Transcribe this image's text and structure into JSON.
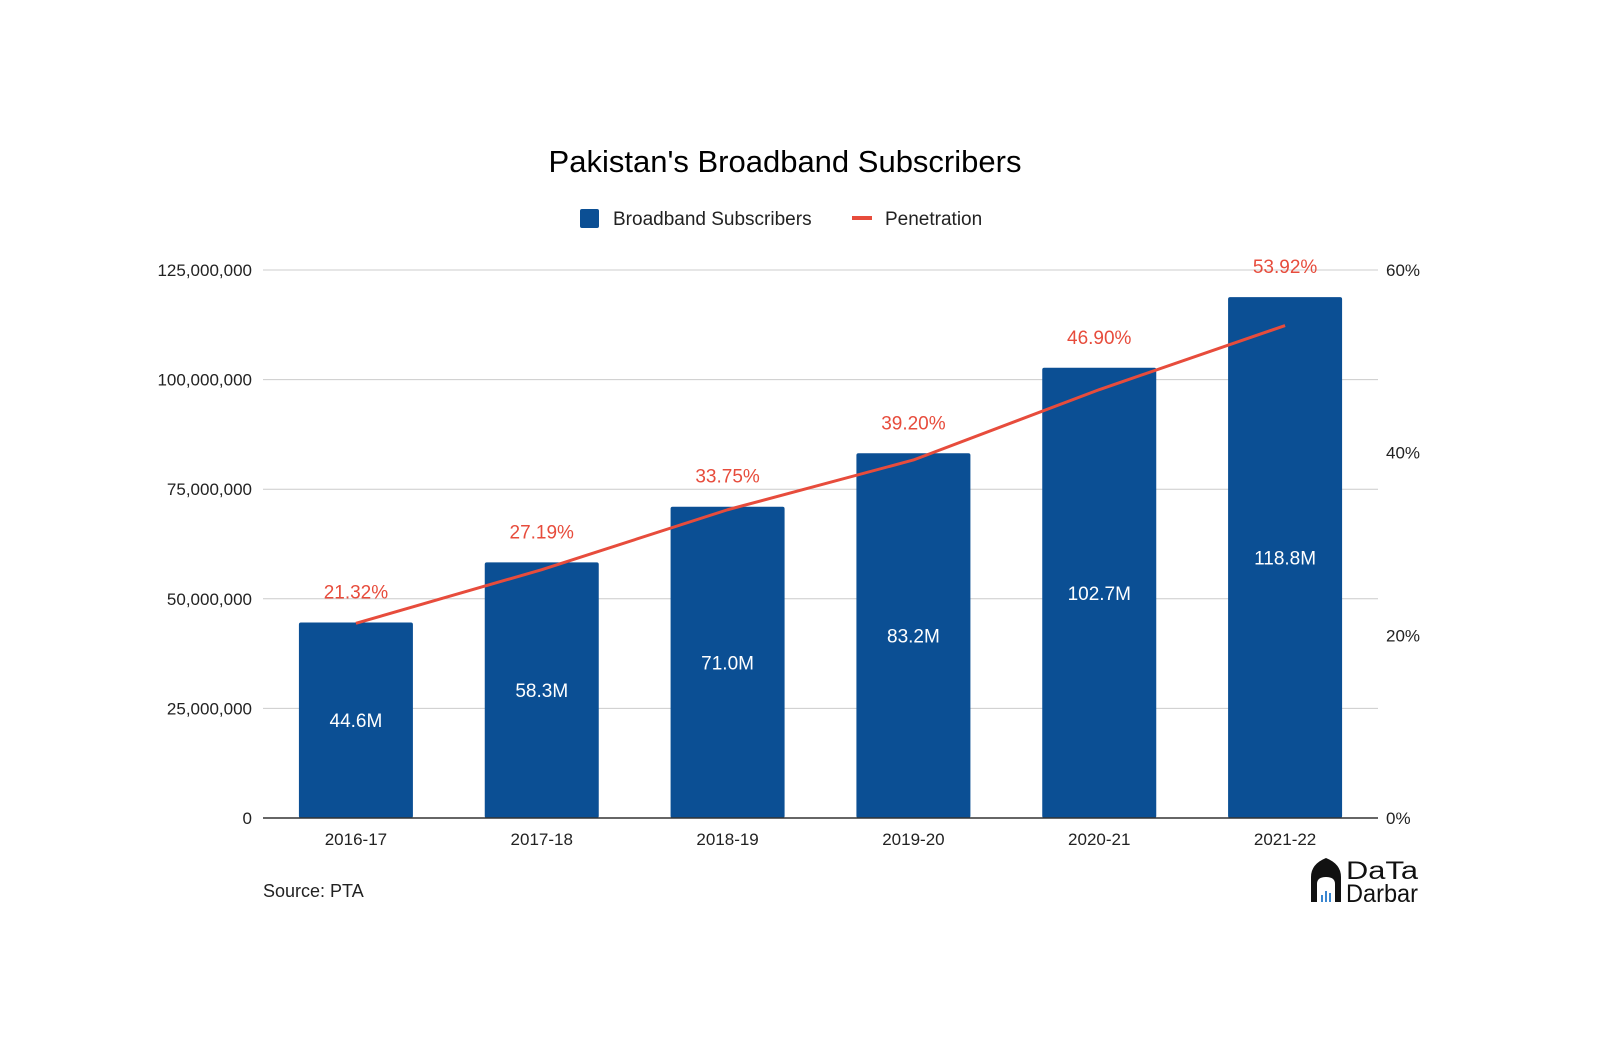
{
  "chart_data": {
    "type": "bar",
    "title": "Pakistan's Broadband Subscribers",
    "categories": [
      "2016-17",
      "2017-18",
      "2018-19",
      "2019-20",
      "2020-21",
      "2021-22"
    ],
    "series": [
      {
        "name": "Broadband Subscribers",
        "type": "bar",
        "axis": "left",
        "values": [
          44600000,
          58300000,
          71000000,
          83200000,
          102700000,
          118800000
        ],
        "labels": [
          "44.6M",
          "58.3M",
          "71.0M",
          "83.2M",
          "102.7M",
          "118.8M"
        ],
        "color": "#0b4f94"
      },
      {
        "name": "Penetration",
        "type": "line",
        "axis": "right",
        "values": [
          21.32,
          27.19,
          33.75,
          39.2,
          46.9,
          53.92
        ],
        "labels": [
          "21.32%",
          "27.19%",
          "33.75%",
          "39.20%",
          "46.90%",
          "53.92%"
        ],
        "color": "#e74c3c"
      }
    ],
    "y_left": {
      "range": [
        0,
        125000000
      ],
      "ticks": [
        0,
        25000000,
        50000000,
        75000000,
        100000000,
        125000000
      ],
      "tick_labels": [
        "0",
        "25,000,000",
        "50,000,000",
        "75,000,000",
        "100,000,000",
        "125,000,000"
      ]
    },
    "y_right": {
      "range": [
        0,
        60
      ],
      "ticks": [
        0,
        20,
        40,
        60
      ],
      "tick_labels": [
        "0%",
        "20%",
        "40%",
        "60%"
      ]
    },
    "grid": true,
    "legend_position": "top-center",
    "source": "Source: PTA"
  },
  "logo": {
    "text_top": "DaTa",
    "text_bottom": "Darbar"
  }
}
